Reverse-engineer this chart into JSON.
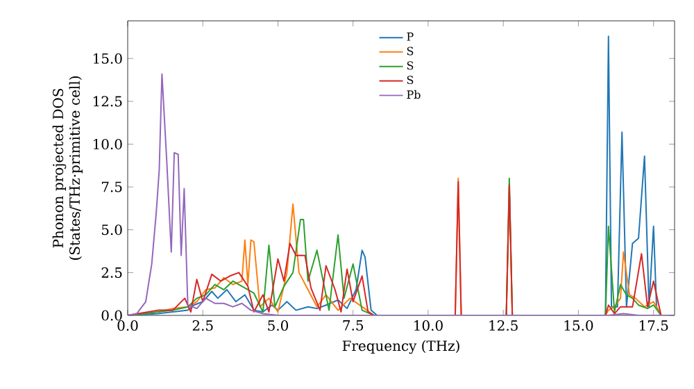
{
  "chart_data": {
    "type": "line",
    "xlabel": "Frequency (THz)",
    "ylabel": "Phonon projected DOS (States/THz·primitive cell)",
    "xlim": [
      0,
      18.2
    ],
    "ylim": [
      0,
      17.2
    ],
    "xticks": [
      {
        "value": 0,
        "label": "0.0"
      },
      {
        "value": 2.5,
        "label": "2.5"
      },
      {
        "value": 5,
        "label": "5.0"
      },
      {
        "value": 7.5,
        "label": "7.5"
      },
      {
        "value": 10,
        "label": "10.0"
      },
      {
        "value": 12.5,
        "label": "12.5"
      },
      {
        "value": 15,
        "label": "15.0"
      },
      {
        "value": 17.5,
        "label": "17.5"
      }
    ],
    "yticks": [
      {
        "value": 0,
        "label": "0.0"
      },
      {
        "value": 2.5,
        "label": "2.5"
      },
      {
        "value": 5,
        "label": "5.0"
      },
      {
        "value": 7.5,
        "label": "7.5"
      },
      {
        "value": 10,
        "label": "10.0"
      },
      {
        "value": 12.5,
        "label": "12.5"
      },
      {
        "value": 15,
        "label": "15.0"
      }
    ],
    "legend": "top",
    "marker": "none",
    "grid": false,
    "series": [
      {
        "name": "P",
        "color": "#1f77b4",
        "x": [
          0,
          1.0,
          1.5,
          2.0,
          2.2,
          2.5,
          2.8,
          3.0,
          3.3,
          3.6,
          3.9,
          4.2,
          4.5,
          4.8,
          5.0,
          5.3,
          5.6,
          6.0,
          6.3,
          6.6,
          7.0,
          7.3,
          7.6,
          7.8,
          7.9,
          8.1,
          8.3,
          10.9,
          11.0,
          11.1,
          12.6,
          12.7,
          12.8,
          15.9,
          16.0,
          16.1,
          16.3,
          16.45,
          16.6,
          16.8,
          17.0,
          17.2,
          17.35,
          17.5,
          17.6,
          17.75,
          18.2
        ],
        "values": [
          0,
          0.1,
          0.2,
          0.3,
          0.6,
          0.8,
          1.4,
          1.0,
          1.5,
          0.8,
          1.2,
          0.3,
          0.2,
          0.6,
          0.3,
          0.8,
          0.3,
          0.5,
          0.4,
          0.6,
          0.9,
          0.4,
          1.5,
          3.8,
          3.4,
          0.3,
          0,
          0,
          null,
          0,
          0,
          null,
          0,
          0,
          16.3,
          0.5,
          0.5,
          10.7,
          0.5,
          4.2,
          4.5,
          9.3,
          0.5,
          5.2,
          0.5,
          0,
          0
        ]
      },
      {
        "name": "S",
        "color": "#ff7f0e",
        "x": [
          0,
          1.0,
          1.5,
          2.0,
          2.3,
          2.6,
          2.9,
          3.2,
          3.5,
          3.8,
          3.9,
          4.0,
          4.1,
          4.2,
          4.4,
          4.7,
          5.0,
          5.3,
          5.5,
          5.7,
          6.0,
          6.3,
          6.6,
          7.0,
          7.4,
          7.8,
          8.2,
          10.9,
          11.0,
          11.1,
          12.6,
          12.7,
          12.8,
          15.9,
          16.0,
          16.2,
          16.4,
          16.5,
          16.7,
          16.9,
          17.2,
          17.5,
          17.75,
          18.2
        ],
        "values": [
          0,
          0.2,
          0.4,
          0.5,
          0.8,
          1.5,
          1.6,
          2.2,
          1.8,
          2.0,
          4.4,
          1.8,
          4.4,
          4.3,
          0.5,
          1.0,
          0.2,
          2.5,
          6.5,
          2.5,
          1.5,
          0.5,
          1.2,
          0.3,
          1.0,
          0.5,
          0,
          0,
          8.0,
          0,
          0,
          7.5,
          0,
          0,
          0.3,
          0.5,
          1.0,
          3.7,
          1.2,
          1.0,
          0.5,
          0.8,
          0,
          0
        ]
      },
      {
        "name": "S",
        "color": "#2ca02c",
        "x": [
          0,
          1.0,
          1.5,
          2.0,
          2.3,
          2.6,
          2.9,
          3.2,
          3.5,
          3.8,
          4.2,
          4.5,
          4.7,
          4.9,
          5.2,
          5.5,
          5.75,
          5.85,
          6.0,
          6.3,
          6.7,
          7.0,
          7.2,
          7.5,
          7.8,
          8.2,
          12.6,
          12.7,
          12.8,
          15.9,
          16.0,
          16.2,
          16.4,
          16.6,
          16.8,
          17.0,
          17.3,
          17.5,
          17.75,
          18.2
        ],
        "values": [
          0,
          0.2,
          0.3,
          0.5,
          1.0,
          1.2,
          1.8,
          1.5,
          2.0,
          1.7,
          1.3,
          0.2,
          4.1,
          0.5,
          1.7,
          2.5,
          5.6,
          5.6,
          2.0,
          3.8,
          0.3,
          4.7,
          1.0,
          3.0,
          0.3,
          0,
          0,
          8.0,
          0,
          0,
          5.2,
          0.2,
          1.8,
          1.2,
          1.0,
          0.6,
          0.4,
          0.6,
          0,
          0
        ]
      },
      {
        "name": "S",
        "color": "#d62728",
        "x": [
          0,
          1.0,
          1.5,
          1.9,
          2.1,
          2.3,
          2.5,
          2.8,
          3.1,
          3.4,
          3.7,
          4.0,
          4.2,
          4.5,
          4.7,
          5.0,
          5.2,
          5.4,
          5.6,
          5.9,
          6.1,
          6.4,
          6.6,
          6.9,
          7.1,
          7.3,
          7.5,
          7.8,
          8.0,
          8.2,
          10.9,
          11.0,
          11.1,
          12.6,
          12.7,
          12.8,
          15.9,
          16.0,
          16.2,
          16.4,
          16.6,
          16.8,
          17.1,
          17.3,
          17.5,
          17.75,
          18.2
        ],
        "values": [
          0,
          0.3,
          0.3,
          1.0,
          0.2,
          2.1,
          0.8,
          2.4,
          2.0,
          2.3,
          2.5,
          1.7,
          0.2,
          1.2,
          0.2,
          3.3,
          2.0,
          4.2,
          3.5,
          3.5,
          1.6,
          0.3,
          2.9,
          1.5,
          0.2,
          2.7,
          0.8,
          2.3,
          0.2,
          0,
          0,
          7.8,
          0,
          0,
          7.6,
          0,
          0,
          0.6,
          0.1,
          0.5,
          0.5,
          0.5,
          3.6,
          0.5,
          2.0,
          0,
          0
        ]
      },
      {
        "name": "Pb",
        "color": "#9467bd",
        "x": [
          0,
          0.3,
          0.6,
          0.8,
          0.95,
          1.05,
          1.14,
          1.3,
          1.45,
          1.55,
          1.68,
          1.78,
          1.88,
          2.0,
          2.3,
          2.6,
          2.9,
          3.2,
          3.5,
          3.8,
          4.1,
          4.5,
          5.0,
          6.0,
          7.0,
          8.0,
          8.2,
          16.0,
          16.5,
          17.0,
          18.2
        ],
        "values": [
          0,
          0.1,
          0.8,
          3.0,
          6.0,
          8.5,
          14.1,
          9.0,
          3.7,
          9.5,
          9.4,
          3.5,
          7.4,
          0.6,
          0.4,
          1.0,
          0.7,
          0.7,
          0.5,
          0.7,
          0.3,
          0.1,
          0,
          0,
          0,
          0,
          0,
          0,
          0.1,
          0,
          0
        ]
      }
    ]
  }
}
